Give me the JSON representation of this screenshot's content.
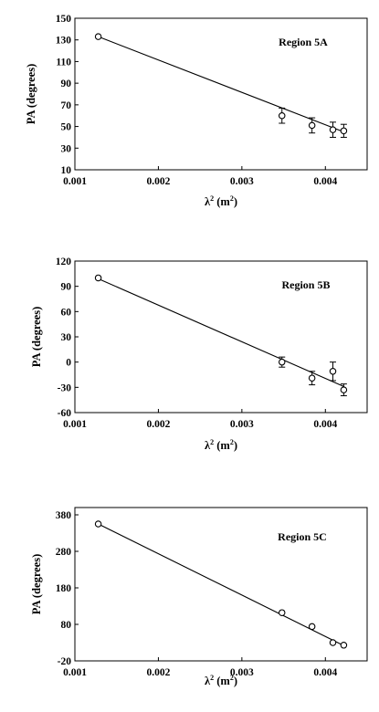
{
  "chart_data": [
    {
      "type": "scatter",
      "title": "Region 5A",
      "xlabel": "λ",
      "xlabel_sup": "2",
      "xlabel_unit": "(m",
      "xlabel_unit_sup": "2",
      "xlabel_close": ")",
      "ylabel": "PA (degrees)",
      "xlim": [
        0.001,
        0.0045
      ],
      "ylim": [
        10,
        150
      ],
      "xticks": [
        0.001,
        0.002,
        0.003,
        0.004
      ],
      "xtick_labels": [
        "0.001",
        "0.002",
        "0.003",
        "0.004"
      ],
      "yticks": [
        10,
        30,
        50,
        70,
        90,
        110,
        130,
        150
      ],
      "ytick_labels": [
        "10",
        "30",
        "50",
        "70",
        "90",
        "110",
        "130",
        "150"
      ],
      "points": [
        {
          "x": 0.00128,
          "y": 133,
          "err": 1
        },
        {
          "x": 0.00348,
          "y": 60,
          "err": 7
        },
        {
          "x": 0.00384,
          "y": 51,
          "err": 7
        },
        {
          "x": 0.00409,
          "y": 47,
          "err": 7
        },
        {
          "x": 0.00422,
          "y": 46,
          "err": 6
        }
      ],
      "fit_line": {
        "x": [
          0.00128,
          0.00422
        ],
        "y": [
          133,
          45
        ]
      }
    },
    {
      "type": "scatter",
      "title": "Region 5B",
      "xlabel": "λ",
      "xlabel_sup": "2",
      "xlabel_unit": "(m",
      "xlabel_unit_sup": "2",
      "xlabel_close": ")",
      "ylabel": "PA (degrees)",
      "xlim": [
        0.001,
        0.0045
      ],
      "ylim": [
        -60,
        120
      ],
      "xticks": [
        0.001,
        0.002,
        0.003,
        0.004
      ],
      "xtick_labels": [
        "0.001",
        "0.002",
        "0.003",
        "0.004"
      ],
      "yticks": [
        -60,
        -30,
        0,
        30,
        60,
        90,
        120
      ],
      "ytick_labels": [
        "-60",
        "-30",
        "0",
        "30",
        "60",
        "90",
        "120"
      ],
      "points": [
        {
          "x": 0.00128,
          "y": 100,
          "err": 1
        },
        {
          "x": 0.00348,
          "y": 0,
          "err": 6
        },
        {
          "x": 0.00384,
          "y": -19,
          "err": 8
        },
        {
          "x": 0.00409,
          "y": -11,
          "err": 11
        },
        {
          "x": 0.00422,
          "y": -33,
          "err": 7
        }
      ],
      "fit_line": {
        "x": [
          0.00128,
          0.00422
        ],
        "y": [
          99,
          -29
        ]
      }
    },
    {
      "type": "scatter",
      "title": "Region 5C",
      "xlabel": "λ",
      "xlabel_sup": "2",
      "xlabel_unit": "(m",
      "xlabel_unit_sup": "2",
      "xlabel_close": ")",
      "ylabel": "PA (degrees)",
      "xlim": [
        0.001,
        0.0045
      ],
      "ylim": [
        -20,
        400
      ],
      "xticks": [
        0.001,
        0.002,
        0.003,
        0.004
      ],
      "xtick_labels": [
        "0.001",
        "0.002",
        "0.003",
        "0.004"
      ],
      "yticks": [
        -20,
        80,
        180,
        280,
        380
      ],
      "ytick_labels": [
        "-20",
        "80",
        "180",
        "280",
        "380"
      ],
      "points": [
        {
          "x": 0.00128,
          "y": 355,
          "err": 2
        },
        {
          "x": 0.00348,
          "y": 112,
          "err": 3
        },
        {
          "x": 0.00384,
          "y": 74,
          "err": 3
        },
        {
          "x": 0.00409,
          "y": 30,
          "err": 4
        },
        {
          "x": 0.00422,
          "y": 23,
          "err": 4
        }
      ],
      "fit_line": {
        "x": [
          0.00128,
          0.00422
        ],
        "y": [
          355,
          22
        ]
      }
    }
  ]
}
